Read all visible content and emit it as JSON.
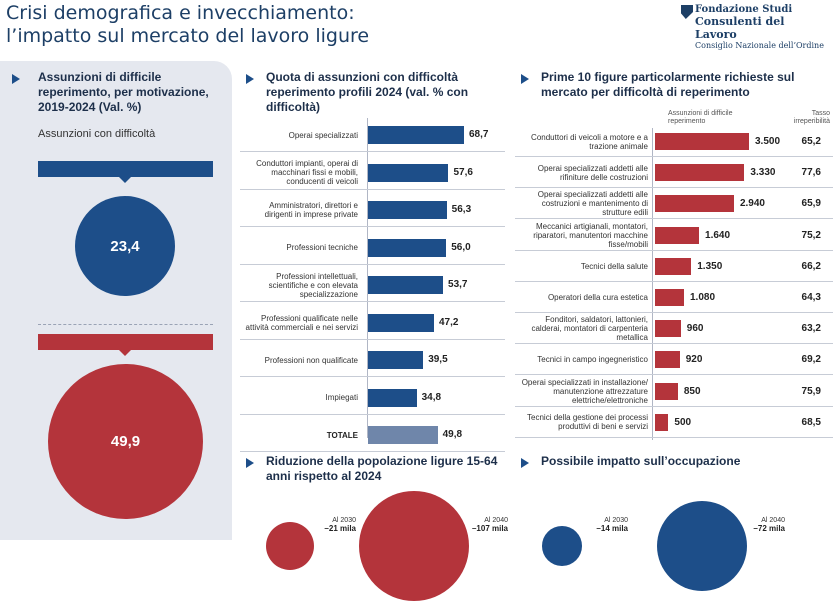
{
  "title": [
    "Crisi demografica e invecchiamento:",
    "l’impatto sul mercato del lavoro ligure"
  ],
  "logo": {
    "line1": "Fondazione Studi",
    "line2": "Consulenti del Lavoro",
    "line3": "Consiglio Nazionale dell’Ordine"
  },
  "colors": {
    "navy": "#1d4e89",
    "red": "#b4343b",
    "total": "#6f86aa",
    "panel": "#e5e8ef"
  },
  "chart_data": [
    {
      "type": "circle",
      "title": "Assunzioni di difficile reperimento, per motivazione, 2019-2024 (Val. %)",
      "subtitle": "Assunzioni con difficoltà",
      "values": [
        "23,4",
        "49,9"
      ],
      "numeric": [
        23.4,
        49.9
      ]
    },
    {
      "type": "bar",
      "title": "Quota di assunzioni con difficoltà reperimento profili 2024 (val. % con difficoltà)",
      "categories": [
        "Operai specializzati",
        "Conduttori impianti, operai di macchinari fissi e mobili, conducenti di veicoli",
        "Amministratori, direttori e dirigenti in imprese private",
        "Professioni tecniche",
        "Professioni intellettuali, scientifiche e con elevata specializzazione",
        "Professioni qualificate nelle attività commerciali e nei servizi",
        "Professioni non qualificate",
        "Impiegati",
        "TOTALE"
      ],
      "values": [
        68.7,
        57.6,
        56.3,
        56.0,
        53.7,
        47.2,
        39.5,
        34.8,
        49.8
      ],
      "labels": [
        "68,7",
        "57,6",
        "56,3",
        "56,0",
        "53,7",
        "47,2",
        "39,5",
        "34,8",
        "49,8"
      ]
    },
    {
      "type": "bar",
      "title": "Prime 10 figure particolarmente richieste sul mercato per difficoltà di reperimento",
      "col1_header": "Assunzioni di difficile reperimento",
      "col2_header": "Tasso irreperibilità",
      "categories": [
        "Conduttori di veicoli a motore e a trazione animale",
        "Operai specializzati addetti alle rifiniture delle costruzioni",
        "Operai specializzati addetti alle costruzioni e mantenimento di strutture edili",
        "Meccanici artigianali, montatori, riparatori, manutentori macchine fisse/mobili",
        "Tecnici della salute",
        "Operatori della cura estetica",
        "Fonditori, saldatori, lattonieri, calderai, montatori di carpenteria metallica",
        "Tecnici in campo ingegneristico",
        "Operai specializzati in installazione/ manutenzione attrezzature elettriche/elettroniche",
        "Tecnici della gestione dei processi produttivi di beni e servizi"
      ],
      "values": [
        3500,
        3330,
        2940,
        1640,
        1350,
        1080,
        960,
        920,
        850,
        500
      ],
      "labels": [
        "3.500",
        "3.330",
        "2.940",
        "1.640",
        "1.350",
        "1.080",
        "960",
        "920",
        "850",
        "500"
      ],
      "rates": [
        "65,2",
        "77,6",
        "65,9",
        "75,2",
        "66,2",
        "64,3",
        "63,2",
        "69,2",
        "75,9",
        "68,5"
      ]
    },
    {
      "type": "circle",
      "title": "Riduzione della popolazione ligure 15-64 anni rispetto al 2024",
      "items": [
        {
          "when": "Al 2030",
          "value": "–21 mila",
          "numeric": 21
        },
        {
          "when": "Al 2040",
          "value": "–107 mila",
          "numeric": 107
        }
      ]
    },
    {
      "type": "circle",
      "title": "Possibile impatto sull’occupazione",
      "items": [
        {
          "when": "Al 2030",
          "value": "–14 mila",
          "numeric": 14
        },
        {
          "when": "Al 2040",
          "value": "–72 mila",
          "numeric": 72
        }
      ]
    }
  ]
}
